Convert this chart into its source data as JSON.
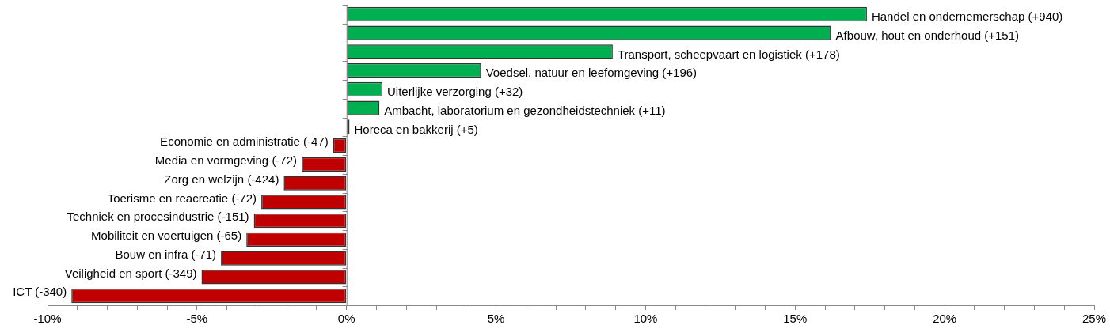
{
  "chart_data": {
    "type": "bar",
    "orientation": "horizontal",
    "categories": [
      "Handel en ondernemerschap (+940)",
      "Afbouw, hout en onderhoud (+151)",
      "Transport, scheepvaart en logistiek (+178)",
      "Voedsel, natuur en leefomgeving (+196)",
      "Uiterlijke verzorging (+32)",
      "Ambacht, laboratorium en gezondheidstechniek (+11)",
      "Horeca en bakkerij (+5)",
      "Economie en administratie (-47)",
      "Media en vormgeving (-72)",
      "Zorg en welzijn (-424)",
      "Toerisme en reacreatie (-72)",
      "Techniek en procesindustrie (-151)",
      "Mobiliteit en voertuigen (-65)",
      "Bouw en infra (-71)",
      "Veiligheid en sport (-349)",
      "ICT (-340)"
    ],
    "values": [
      17.4,
      16.2,
      8.9,
      4.5,
      1.2,
      1.1,
      0.1,
      -0.45,
      -1.5,
      -2.1,
      -2.85,
      -3.1,
      -3.35,
      -4.2,
      -4.85,
      -9.2
    ],
    "colors": [
      "#00b050",
      "#00b050",
      "#00b050",
      "#00b050",
      "#00b050",
      "#00b050",
      "#00b050",
      "#c00000",
      "#c00000",
      "#c00000",
      "#c00000",
      "#c00000",
      "#c00000",
      "#c00000",
      "#c00000",
      "#c00000"
    ],
    "xlim": [
      -10,
      25
    ],
    "xticks": [
      {
        "value": -10,
        "label": "-10%"
      },
      {
        "value": -9,
        "label": null
      },
      {
        "value": -8,
        "label": null
      },
      {
        "value": -7,
        "label": null
      },
      {
        "value": -6,
        "label": null
      },
      {
        "value": -5,
        "label": "-5%"
      },
      {
        "value": -4,
        "label": null
      },
      {
        "value": -3,
        "label": null
      },
      {
        "value": -2,
        "label": null
      },
      {
        "value": -1,
        "label": null
      },
      {
        "value": 0,
        "label": "0%"
      },
      {
        "value": 1,
        "label": null
      },
      {
        "value": 2,
        "label": null
      },
      {
        "value": 3,
        "label": null
      },
      {
        "value": 4,
        "label": null
      },
      {
        "value": 5,
        "label": "5%"
      },
      {
        "value": 6,
        "label": null
      },
      {
        "value": 7,
        "label": null
      },
      {
        "value": 8,
        "label": null
      },
      {
        "value": 9,
        "label": null
      },
      {
        "value": 10,
        "label": "10%"
      },
      {
        "value": 11,
        "label": null
      },
      {
        "value": 12,
        "label": null
      },
      {
        "value": 13,
        "label": null
      },
      {
        "value": 14,
        "label": null
      },
      {
        "value": 15,
        "label": "15%"
      },
      {
        "value": 16,
        "label": null
      },
      {
        "value": 17,
        "label": null
      },
      {
        "value": 18,
        "label": null
      },
      {
        "value": 19,
        "label": null
      },
      {
        "value": 20,
        "label": "20%"
      },
      {
        "value": 21,
        "label": null
      },
      {
        "value": 22,
        "label": null
      },
      {
        "value": 23,
        "label": null
      },
      {
        "value": 24,
        "label": null
      },
      {
        "value": 25,
        "label": "25%"
      }
    ],
    "legend": false
  }
}
